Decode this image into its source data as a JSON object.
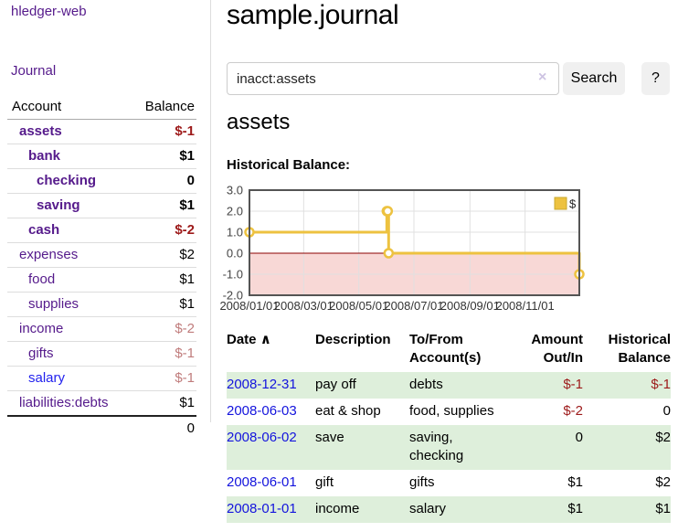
{
  "sidebar": {
    "app_title": "hledger-web",
    "nav_journal": "Journal",
    "accounts": {
      "headers": {
        "account": "Account",
        "balance": "Balance"
      },
      "rows": [
        {
          "name": "assets",
          "indent": 1,
          "bold": true,
          "balance": "$-1"
        },
        {
          "name": "bank",
          "indent": 2,
          "bold": true,
          "balance": "$1"
        },
        {
          "name": "checking",
          "indent": 3,
          "bold": true,
          "balance": "0"
        },
        {
          "name": "saving",
          "indent": 3,
          "bold": true,
          "balance": "$1"
        },
        {
          "name": "cash",
          "indent": 2,
          "bold": true,
          "balance": "$-2"
        },
        {
          "name": "expenses",
          "indent": 1,
          "bold": false,
          "balance": "$2"
        },
        {
          "name": "food",
          "indent": 2,
          "bold": false,
          "balance": "$1"
        },
        {
          "name": "supplies",
          "indent": 2,
          "bold": false,
          "balance": "$1"
        },
        {
          "name": "income",
          "indent": 1,
          "bold": false,
          "balance": "$-2"
        },
        {
          "name": "gifts",
          "indent": 2,
          "bold": false,
          "balance": "$-1"
        },
        {
          "name": "salary",
          "indent": 2,
          "bold": false,
          "blue_link": true,
          "balance": "$-1"
        },
        {
          "name": "liabilities:debts",
          "indent": 1,
          "bold": false,
          "balance": "$1"
        }
      ],
      "total": "0"
    }
  },
  "main": {
    "title": "sample.journal",
    "search": {
      "value": "inacct:assets",
      "clear_icon": "×",
      "button_label": "Search",
      "help_label": "?"
    },
    "account_heading": "assets",
    "chart_title": "Historical Balance:"
  },
  "chart_data": {
    "type": "line",
    "style": "step",
    "title": "Historical Balance",
    "series": [
      {
        "name": "$",
        "color": "#edc240",
        "points": [
          {
            "x": "2008-01-01",
            "y": 1
          },
          {
            "x": "2008-06-01",
            "y": 2
          },
          {
            "x": "2008-06-02",
            "y": 2
          },
          {
            "x": "2008-06-03",
            "y": 0
          },
          {
            "x": "2008-12-31",
            "y": -1
          }
        ]
      }
    ],
    "xlim": [
      "2008-01-01",
      "2008-12-31"
    ],
    "ylim": [
      -2,
      3
    ],
    "yticks": [
      3.0,
      2.0,
      1.0,
      0.0,
      -1.0,
      -2.0
    ],
    "xticks": [
      {
        "x": "2008-01-01",
        "label": "2008/01/01"
      },
      {
        "x": "2008-03-01",
        "label": "2008/03/01"
      },
      {
        "x": "2008-05-01",
        "label": "2008/05/01"
      },
      {
        "x": "2008-07-01",
        "label": "2008/07/01"
      },
      {
        "x": "2008-09-01",
        "label": "2008/09/01"
      },
      {
        "x": "2008-11-01",
        "label": "2008/11/01"
      }
    ],
    "legend": [
      "$"
    ],
    "legend_position": "top-right",
    "grid": true,
    "negative_region_color": "#f8d8d6",
    "zero_line_color": "#8b0000",
    "border_color": "#545454"
  },
  "register": {
    "headers": {
      "date": "Date",
      "description": "Description",
      "accounts": "To/From Account(s)",
      "amount": "Amount Out/In",
      "balance": "Historical Balance"
    },
    "sort_icon": "∧",
    "rows": [
      {
        "date": "2008-12-31",
        "description": "pay off",
        "accounts": "debts",
        "amount": "$-1",
        "balance": "$-1"
      },
      {
        "date": "2008-06-03",
        "description": "eat & shop",
        "accounts": "food, supplies",
        "amount": "$-2",
        "balance": "0"
      },
      {
        "date": "2008-06-02",
        "description": "save",
        "accounts": "saving, checking",
        "amount": "0",
        "balance": "$2"
      },
      {
        "date": "2008-06-01",
        "description": "gift",
        "accounts": "gifts",
        "amount": "$1",
        "balance": "$2"
      },
      {
        "date": "2008-01-01",
        "description": "income",
        "accounts": "salary",
        "amount": "$1",
        "balance": "$1"
      }
    ]
  },
  "colors": {
    "link_purple": "#551a8b",
    "link_blue": "#2222ee",
    "negative_strong": "#9d1a1a",
    "negative_muted": "#c07c7c",
    "row_stripe_green": "#deefdb",
    "chart_line_gold": "#edc240"
  }
}
